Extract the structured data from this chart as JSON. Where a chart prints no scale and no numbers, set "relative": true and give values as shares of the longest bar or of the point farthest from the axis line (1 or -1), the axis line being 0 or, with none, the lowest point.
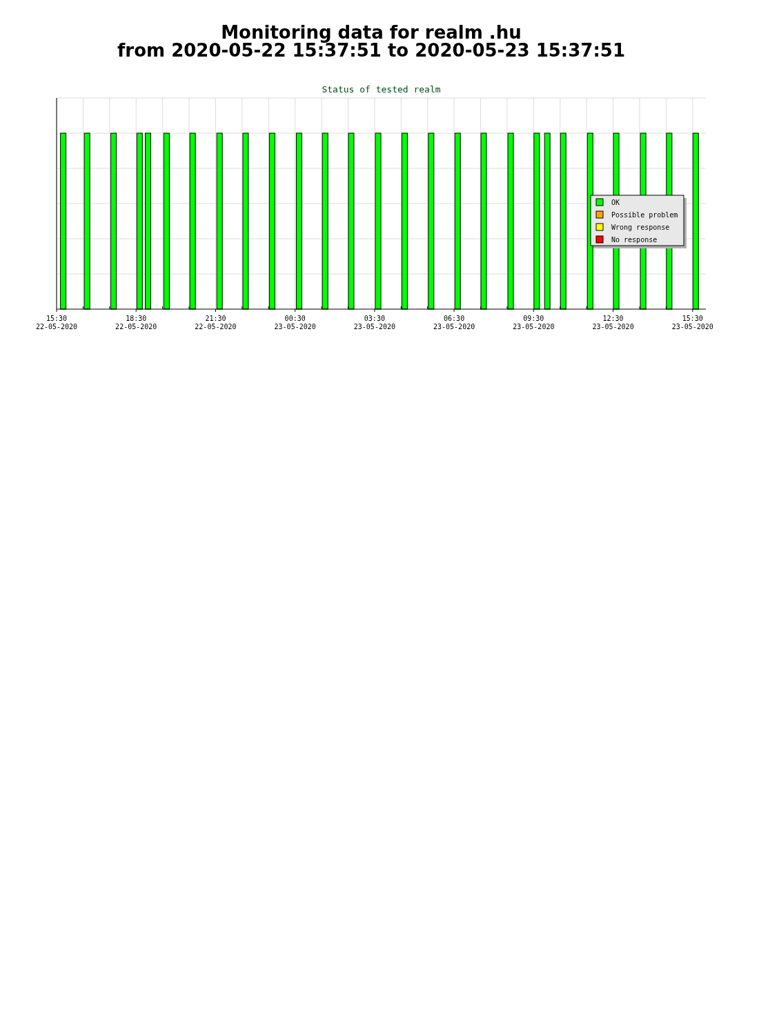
{
  "chart_data": {
    "type": "bar",
    "title": "Monitoring data for realm .hu",
    "subtitle": "from 2020-05-22 15:37:51 to 2020-05-23 15:37:51",
    "annotations": [
      "Status of tested realm"
    ],
    "relative": true,
    "grid": true,
    "legend": "right",
    "xlim": [
      "2020-05-22T15:30",
      "2020-05-23T16:00"
    ],
    "xticks": [
      {
        "value": "2020-05-22T15:30",
        "label": "15:30 22-05-2020"
      },
      {
        "value": "2020-05-22T16:30",
        "label": null
      },
      {
        "value": "2020-05-22T17:30",
        "label": null
      },
      {
        "value": "2020-05-22T18:30",
        "label": "18:30 22-05-2020"
      },
      {
        "value": "2020-05-22T19:30",
        "label": null
      },
      {
        "value": "2020-05-22T20:30",
        "label": null
      },
      {
        "value": "2020-05-22T21:30",
        "label": "21:30 22-05-2020"
      },
      {
        "value": "2020-05-22T22:30",
        "label": null
      },
      {
        "value": "2020-05-22T23:30",
        "label": null
      },
      {
        "value": "2020-05-23T00:30",
        "label": "00:30 23-05-2020"
      },
      {
        "value": "2020-05-23T01:30",
        "label": null
      },
      {
        "value": "2020-05-23T02:30",
        "label": null
      },
      {
        "value": "2020-05-23T03:30",
        "label": "03:30 23-05-2020"
      },
      {
        "value": "2020-05-23T04:30",
        "label": null
      },
      {
        "value": "2020-05-23T05:30",
        "label": null
      },
      {
        "value": "2020-05-23T06:30",
        "label": "06:30 23-05-2020"
      },
      {
        "value": "2020-05-23T07:30",
        "label": null
      },
      {
        "value": "2020-05-23T08:30",
        "label": null
      },
      {
        "value": "2020-05-23T09:30",
        "label": "09:30 23-05-2020"
      },
      {
        "value": "2020-05-23T10:30",
        "label": null
      },
      {
        "value": "2020-05-23T11:30",
        "label": null
      },
      {
        "value": "2020-05-23T12:30",
        "label": "12:30 23-05-2020"
      },
      {
        "value": "2020-05-23T13:30",
        "label": null
      },
      {
        "value": "2020-05-23T14:30",
        "label": null
      },
      {
        "value": "2020-05-23T15:30",
        "label": "15:30 23-05-2020"
      }
    ],
    "x": [
      "2020-05-22T15:45",
      "2020-05-22T16:39",
      "2020-05-22T17:39",
      "2020-05-22T18:38",
      "2020-05-22T18:57",
      "2020-05-22T19:39",
      "2020-05-22T20:38",
      "2020-05-22T21:39",
      "2020-05-22T22:38",
      "2020-05-22T23:38",
      "2020-05-23T00:39",
      "2020-05-23T01:38",
      "2020-05-23T02:37",
      "2020-05-23T03:38",
      "2020-05-23T04:38",
      "2020-05-23T05:38",
      "2020-05-23T06:38",
      "2020-05-23T07:37",
      "2020-05-23T08:38",
      "2020-05-23T09:37",
      "2020-05-23T10:01",
      "2020-05-23T10:37",
      "2020-05-23T11:38",
      "2020-05-23T12:37",
      "2020-05-23T13:38",
      "2020-05-23T14:37",
      "2020-05-23T15:37"
    ],
    "series": [
      {
        "name": "OK",
        "color": "#00ff00",
        "values": [
          1,
          1,
          1,
          1,
          1,
          1,
          1,
          1,
          1,
          1,
          1,
          1,
          1,
          1,
          1,
          1,
          1,
          1,
          1,
          1,
          1,
          1,
          1,
          1,
          1,
          1,
          1
        ]
      },
      {
        "name": "Possible problem",
        "color": "#ffa500",
        "values": [
          null,
          null,
          null,
          null,
          null,
          null,
          null,
          null,
          null,
          null,
          null,
          null,
          null,
          null,
          null,
          null,
          null,
          null,
          null,
          null,
          null,
          null,
          null,
          null,
          null,
          null,
          null
        ]
      },
      {
        "name": "Wrong response",
        "color": "#ffff00",
        "values": [
          null,
          null,
          null,
          null,
          null,
          null,
          null,
          null,
          null,
          null,
          null,
          null,
          null,
          null,
          null,
          null,
          null,
          null,
          null,
          null,
          null,
          null,
          null,
          null,
          null,
          null,
          null
        ]
      },
      {
        "name": "No response",
        "color": "#ff0000",
        "values": [
          null,
          null,
          null,
          null,
          null,
          null,
          null,
          null,
          null,
          null,
          null,
          null,
          null,
          null,
          null,
          null,
          null,
          null,
          null,
          null,
          null,
          null,
          null,
          null,
          null,
          null,
          null
        ]
      }
    ]
  }
}
